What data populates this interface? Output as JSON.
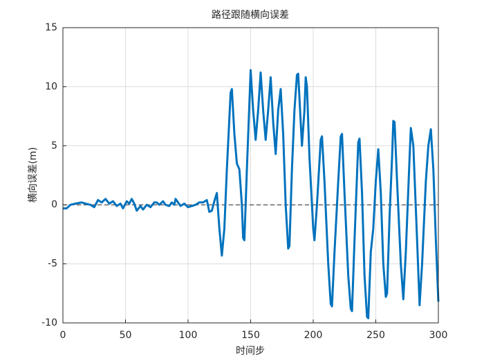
{
  "chart_data": {
    "type": "line",
    "title": "路径跟随横向误差",
    "xlabel": "时间步",
    "ylabel": "横向误差(m)",
    "x": [
      0,
      3,
      6,
      10,
      15,
      18,
      22,
      25,
      28,
      31,
      34,
      37,
      40,
      43,
      46,
      48,
      51,
      53,
      55,
      57,
      59,
      62,
      64,
      67,
      70,
      73,
      75,
      77,
      80,
      82,
      85,
      87,
      89,
      90,
      92,
      94,
      97,
      100,
      103,
      106,
      109,
      112,
      115,
      117,
      119,
      121,
      123,
      125,
      127,
      129,
      131,
      134,
      135,
      137,
      139,
      141,
      143,
      144,
      145,
      147,
      150,
      152,
      154,
      156,
      158,
      160,
      162,
      164,
      166,
      168,
      170,
      172,
      174,
      176,
      178,
      180,
      181,
      183,
      185,
      187,
      188,
      190,
      191,
      193,
      194,
      195,
      197,
      199,
      200,
      201,
      203,
      206,
      207,
      209,
      212,
      214,
      215,
      217,
      220,
      222,
      223,
      225,
      228,
      230,
      231,
      233,
      236,
      237,
      239,
      241,
      243,
      244,
      246,
      248,
      250,
      252,
      254,
      256,
      258,
      259,
      261,
      263,
      264,
      265,
      267,
      270,
      272,
      274,
      277,
      278,
      280,
      283,
      285,
      287,
      290,
      292,
      294,
      296,
      298,
      300
    ],
    "series": [
      {
        "name": "横向误差",
        "color": "#0072BD",
        "values": [
          -0.3,
          -0.3,
          0,
          0.1,
          0.2,
          0.1,
          0,
          -0.2,
          0.4,
          0.2,
          0.5,
          0.1,
          0.3,
          -0.1,
          0.1,
          -0.3,
          0.3,
          0.1,
          0.5,
          0.1,
          -0.5,
          -0.1,
          -0.4,
          0,
          -0.2,
          0.2,
          0.2,
          0,
          0.3,
          0,
          -0.1,
          0.2,
          0,
          0.5,
          0.2,
          -0.1,
          0.1,
          -0.2,
          -0.1,
          0,
          0.2,
          0.2,
          0.4,
          -0.6,
          -0.5,
          0.3,
          1.0,
          -2,
          -4.3,
          -2,
          3,
          9.5,
          9.8,
          6,
          3.5,
          3,
          0,
          -2.8,
          -3,
          3,
          11.4,
          8,
          5.5,
          8,
          11.2,
          8,
          5.5,
          8,
          10.8,
          7,
          4.3,
          8,
          9.8,
          6,
          0,
          -3.7,
          -3.5,
          3,
          8,
          11,
          11.1,
          7,
          5,
          8,
          10.8,
          10,
          4,
          0,
          -2,
          -3,
          0,
          5.5,
          5.8,
          2,
          -5,
          -8.4,
          -8.6,
          -4,
          2,
          5.8,
          6,
          1,
          -6,
          -8.8,
          -9,
          -3,
          5.3,
          5.6,
          1,
          -6,
          -9.5,
          -9.6,
          -4,
          -2,
          2,
          4.7,
          1,
          -5,
          -7.8,
          -7.5,
          -1,
          4,
          7.1,
          7,
          2,
          -5,
          -8,
          -4,
          4,
          6.5,
          5,
          -3,
          -8.5,
          -5,
          2,
          5,
          6.4,
          3,
          -3,
          -8.2
        ]
      }
    ],
    "xlim": [
      0,
      300
    ],
    "xticks": [
      0,
      50,
      100,
      150,
      200,
      250,
      300
    ],
    "ylim": [
      -10,
      15
    ],
    "yticks": [
      -10,
      -5,
      0,
      5,
      10,
      15
    ],
    "grid": true,
    "hline": 0
  }
}
